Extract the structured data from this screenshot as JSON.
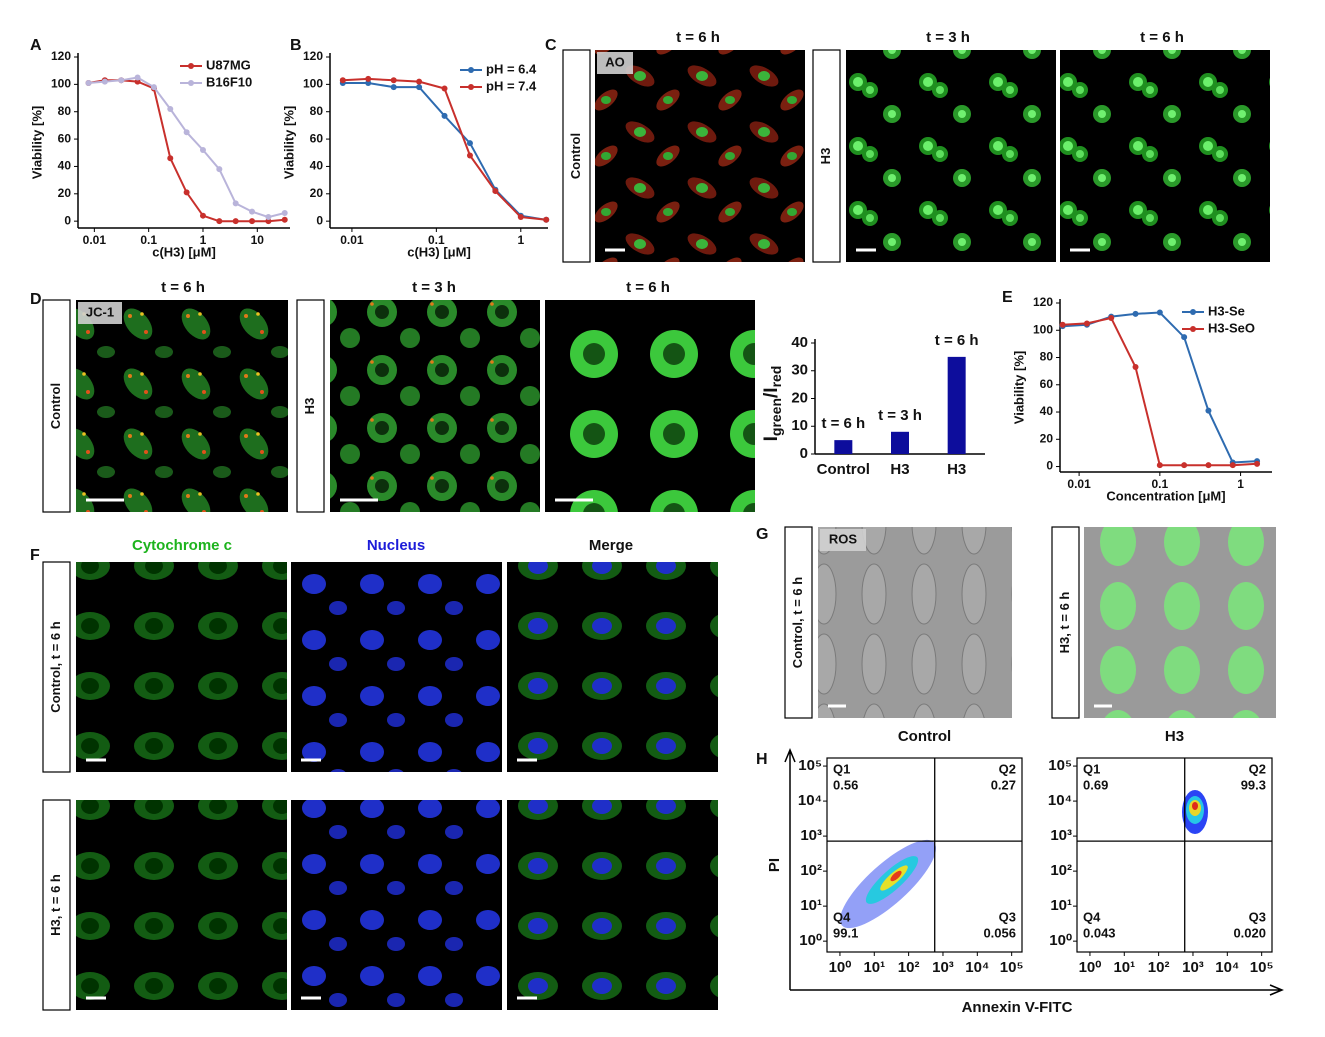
{
  "panel_labels": [
    "A",
    "B",
    "C",
    "D",
    "E",
    "F",
    "G",
    "H"
  ],
  "chart_data": [
    {
      "type": "line",
      "xscale": "log",
      "x_label": "c(H3) [μM]",
      "y_label": "Viability [%]",
      "x": [
        0.0078,
        0.0156,
        0.03125,
        0.0625,
        0.125,
        0.25,
        0.5,
        1,
        2,
        4,
        8,
        16,
        32
      ],
      "series": [
        {
          "name": "U87MG",
          "color": "#c8302c",
          "values": [
            101,
            103,
            103,
            102,
            97,
            46,
            21,
            4,
            0,
            0,
            0,
            0,
            1
          ]
        },
        {
          "name": "B16F10",
          "color": "#b9b4da",
          "values": [
            101,
            102,
            103,
            105,
            98,
            82,
            65,
            52,
            38,
            13,
            7,
            3,
            6
          ]
        }
      ],
      "xlim": [
        0.005,
        40
      ],
      "xticks": [
        0.01,
        0.1,
        1,
        10
      ],
      "ylim": [
        -5,
        120
      ],
      "yticks": [
        0,
        20,
        40,
        60,
        80,
        100,
        120
      ],
      "legend": "upper right"
    },
    {
      "type": "line",
      "xscale": "log",
      "x_label": "c(H3) [μM]",
      "y_label": "Viability [%]",
      "x": [
        0.0078,
        0.0156,
        0.03125,
        0.0625,
        0.125,
        0.25,
        0.5,
        1,
        2
      ],
      "series": [
        {
          "name": "pH = 6.4",
          "color": "#2e6bb0",
          "values": [
            101,
            101,
            98,
            98,
            77,
            57,
            23,
            4,
            1
          ]
        },
        {
          "name": "pH = 7.4",
          "color": "#c8302c",
          "values": [
            103,
            104,
            103,
            102,
            97,
            48,
            22,
            3,
            1
          ]
        }
      ],
      "xlim": [
        0.0055,
        2.1
      ],
      "xticks": [
        0.01,
        0.1,
        1
      ],
      "ylim": [
        -5,
        120
      ],
      "yticks": [
        0,
        20,
        40,
        60,
        80,
        100,
        120
      ],
      "legend": "upper right"
    },
    {
      "type": "bar",
      "y_label": [
        "I",
        "green",
        "/I",
        "red"
      ],
      "categories": [
        "Control",
        "H3",
        "H3"
      ],
      "values": [
        5,
        8,
        35
      ],
      "bar_labels": [
        "t = 6 h",
        "t = 3 h",
        "t = 6 h"
      ],
      "color": "#0d0d9c",
      "ylim": [
        0,
        40
      ],
      "yticks": [
        0,
        10,
        20,
        30,
        40
      ]
    },
    {
      "type": "line",
      "xscale": "log",
      "x_label": "Concentration [μM]",
      "y_label": "Viability [%]",
      "x": [
        0.00625,
        0.0125,
        0.025,
        0.05,
        0.1,
        0.2,
        0.4,
        0.8,
        1.6
      ],
      "series": [
        {
          "name": "H3-Se",
          "color": "#2e6bb0",
          "values": [
            103,
            104,
            110,
            112,
            113,
            95,
            41,
            3,
            4
          ]
        },
        {
          "name": "H3-SeO",
          "color": "#c8302c",
          "values": [
            104,
            105,
            109,
            73,
            1,
            1,
            1,
            1,
            2
          ]
        }
      ],
      "xlim": [
        0.0058,
        2.45
      ],
      "xticks": [
        0.01,
        0.1,
        1
      ],
      "ylim": [
        -4,
        120
      ],
      "yticks": [
        0,
        20,
        40,
        60,
        80,
        100,
        120
      ],
      "legend": "upper right"
    }
  ],
  "micrographs": {
    "C": {
      "headers": [
        "t = 6 h",
        "t = 3 h",
        "t = 6 h"
      ],
      "tag": "AO",
      "rows": [
        "Control",
        "H3"
      ]
    },
    "D": {
      "headers": [
        "t = 6 h",
        "t = 3 h",
        "t = 6 h"
      ],
      "tag": "JC-1",
      "rows": [
        "Control",
        "H3"
      ]
    },
    "F": {
      "headers": [
        "Cytochrome c",
        "Nucleus",
        "Merge"
      ],
      "rows": [
        "Control, t = 6 h",
        "H3, t = 6 h"
      ]
    },
    "G": {
      "tag": "ROS",
      "rows": [
        "Control, t = 6 h",
        "H3, t = 6 h"
      ]
    }
  },
  "flow": {
    "x_label": "Annexin V-FITC",
    "y_label": "PI",
    "ticks": [
      {
        "value": 1,
        "label": "10⁰"
      },
      {
        "value": 10,
        "label": "10¹"
      },
      {
        "value": 100,
        "label": "10²"
      },
      {
        "value": 1000,
        "label": "10³"
      },
      {
        "value": 10000,
        "label": "10⁴"
      },
      {
        "value": 100000,
        "label": "10⁵"
      }
    ],
    "xlim": [
      0.42,
      200000
    ],
    "ylim": [
      0.49,
      170000
    ],
    "gate": [
      575,
      720
    ],
    "plots": [
      {
        "title": "Control",
        "quadrants": [
          [
            "Q1",
            "0.56"
          ],
          [
            "Q2",
            "0.27"
          ],
          [
            "Q4",
            "99.1"
          ],
          [
            "Q3",
            "0.056"
          ]
        ]
      },
      {
        "title": "H3",
        "quadrants": [
          [
            "Q1",
            "0.69"
          ],
          [
            "Q2",
            "99.3"
          ],
          [
            "Q4",
            "0.043"
          ],
          [
            "Q3",
            "0.020"
          ]
        ]
      }
    ]
  }
}
